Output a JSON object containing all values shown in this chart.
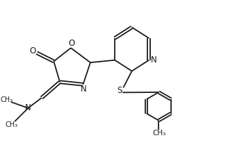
{
  "bg_color": "#ffffff",
  "line_color": "#1a1a1a",
  "lw": 1.3,
  "fig_width": 3.38,
  "fig_height": 2.12,
  "dpi": 100,
  "xlim": [
    0,
    9
  ],
  "ylim": [
    0,
    6
  ]
}
